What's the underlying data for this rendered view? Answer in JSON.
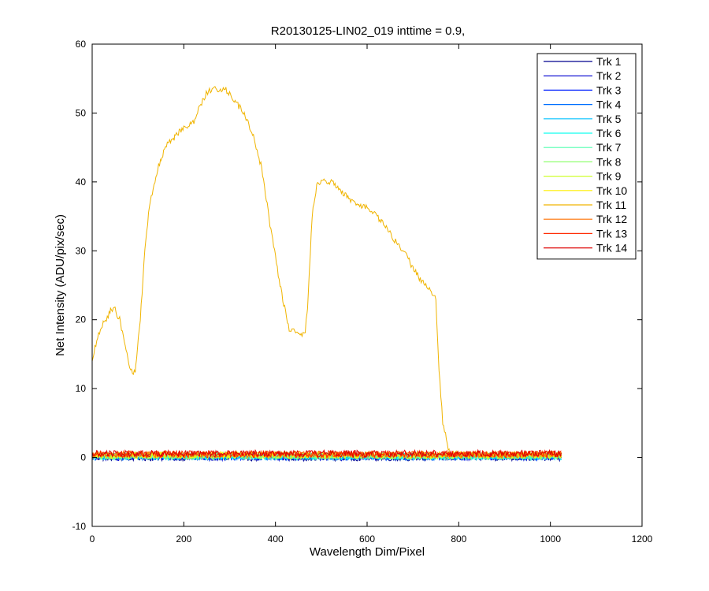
{
  "chart_data": {
    "type": "line",
    "title": "R20130125-LIN02_019 inttime = 0.9,",
    "xlabel": "Wavelength Dim/Pixel",
    "ylabel": "Net Intensity (ADU/pix/sec)",
    "xlim": [
      0,
      1200
    ],
    "ylim": [
      -10,
      60
    ],
    "xticks": [
      0,
      200,
      400,
      600,
      800,
      1000,
      1200
    ],
    "yticks": [
      -10,
      0,
      10,
      20,
      30,
      40,
      50,
      60
    ],
    "grid": false,
    "legend_position": "top-right",
    "noise_x_range": [
      0,
      1024
    ],
    "noise_amplitude": 0.5,
    "series": [
      {
        "name": "Trk 1",
        "color": "#00008f",
        "baseline": 0.0
      },
      {
        "name": "Trk 2",
        "color": "#0000cf",
        "baseline": 0.05
      },
      {
        "name": "Trk 3",
        "color": "#0020ff",
        "baseline": 0.1
      },
      {
        "name": "Trk 4",
        "color": "#0070ff",
        "baseline": 0.1
      },
      {
        "name": "Trk 5",
        "color": "#00c0ff",
        "baseline": 0.15
      },
      {
        "name": "Trk 6",
        "color": "#10ffef",
        "baseline": 0.15
      },
      {
        "name": "Trk 7",
        "color": "#50ffaf",
        "baseline": 0.2
      },
      {
        "name": "Trk 8",
        "color": "#90ff6f",
        "baseline": 0.25
      },
      {
        "name": "Trk 9",
        "color": "#cfff30",
        "baseline": 0.3
      },
      {
        "name": "Trk 10",
        "color": "#ffef00",
        "baseline": 0.35
      },
      {
        "name": "Trk 11",
        "color": "#f0b400",
        "baseline": 0.4,
        "x": [
          0,
          10,
          25,
          40,
          50,
          60,
          70,
          80,
          90,
          95,
          105,
          115,
          125,
          135,
          150,
          165,
          180,
          200,
          220,
          235,
          250,
          270,
          290,
          310,
          330,
          350,
          370,
          390,
          410,
          430,
          450,
          460,
          465,
          470,
          480,
          490,
          500,
          520,
          540,
          560,
          580,
          600,
          620,
          640,
          660,
          680,
          700,
          720,
          740,
          750,
          755,
          765,
          780
        ],
        "y": [
          14,
          17,
          19.5,
          21.3,
          21.4,
          20,
          17,
          13.5,
          12,
          13,
          20,
          30,
          36.5,
          39.5,
          43.5,
          45.5,
          46.5,
          48,
          48.5,
          51,
          53,
          53.5,
          53.5,
          52,
          50,
          47,
          42,
          33,
          25,
          18.5,
          18,
          18,
          18.2,
          22,
          35,
          39.5,
          40,
          40,
          39,
          37.5,
          36.5,
          36.5,
          35,
          33.5,
          31.5,
          30,
          27.5,
          25.5,
          24,
          23,
          15,
          5,
          0.5
        ]
      },
      {
        "name": "Trk 12",
        "color": "#ff7000",
        "baseline": 0.45
      },
      {
        "name": "Trk 13",
        "color": "#ff2800",
        "baseline": 0.5
      },
      {
        "name": "Trk 14",
        "color": "#dd0000",
        "baseline": 0.55
      }
    ]
  }
}
